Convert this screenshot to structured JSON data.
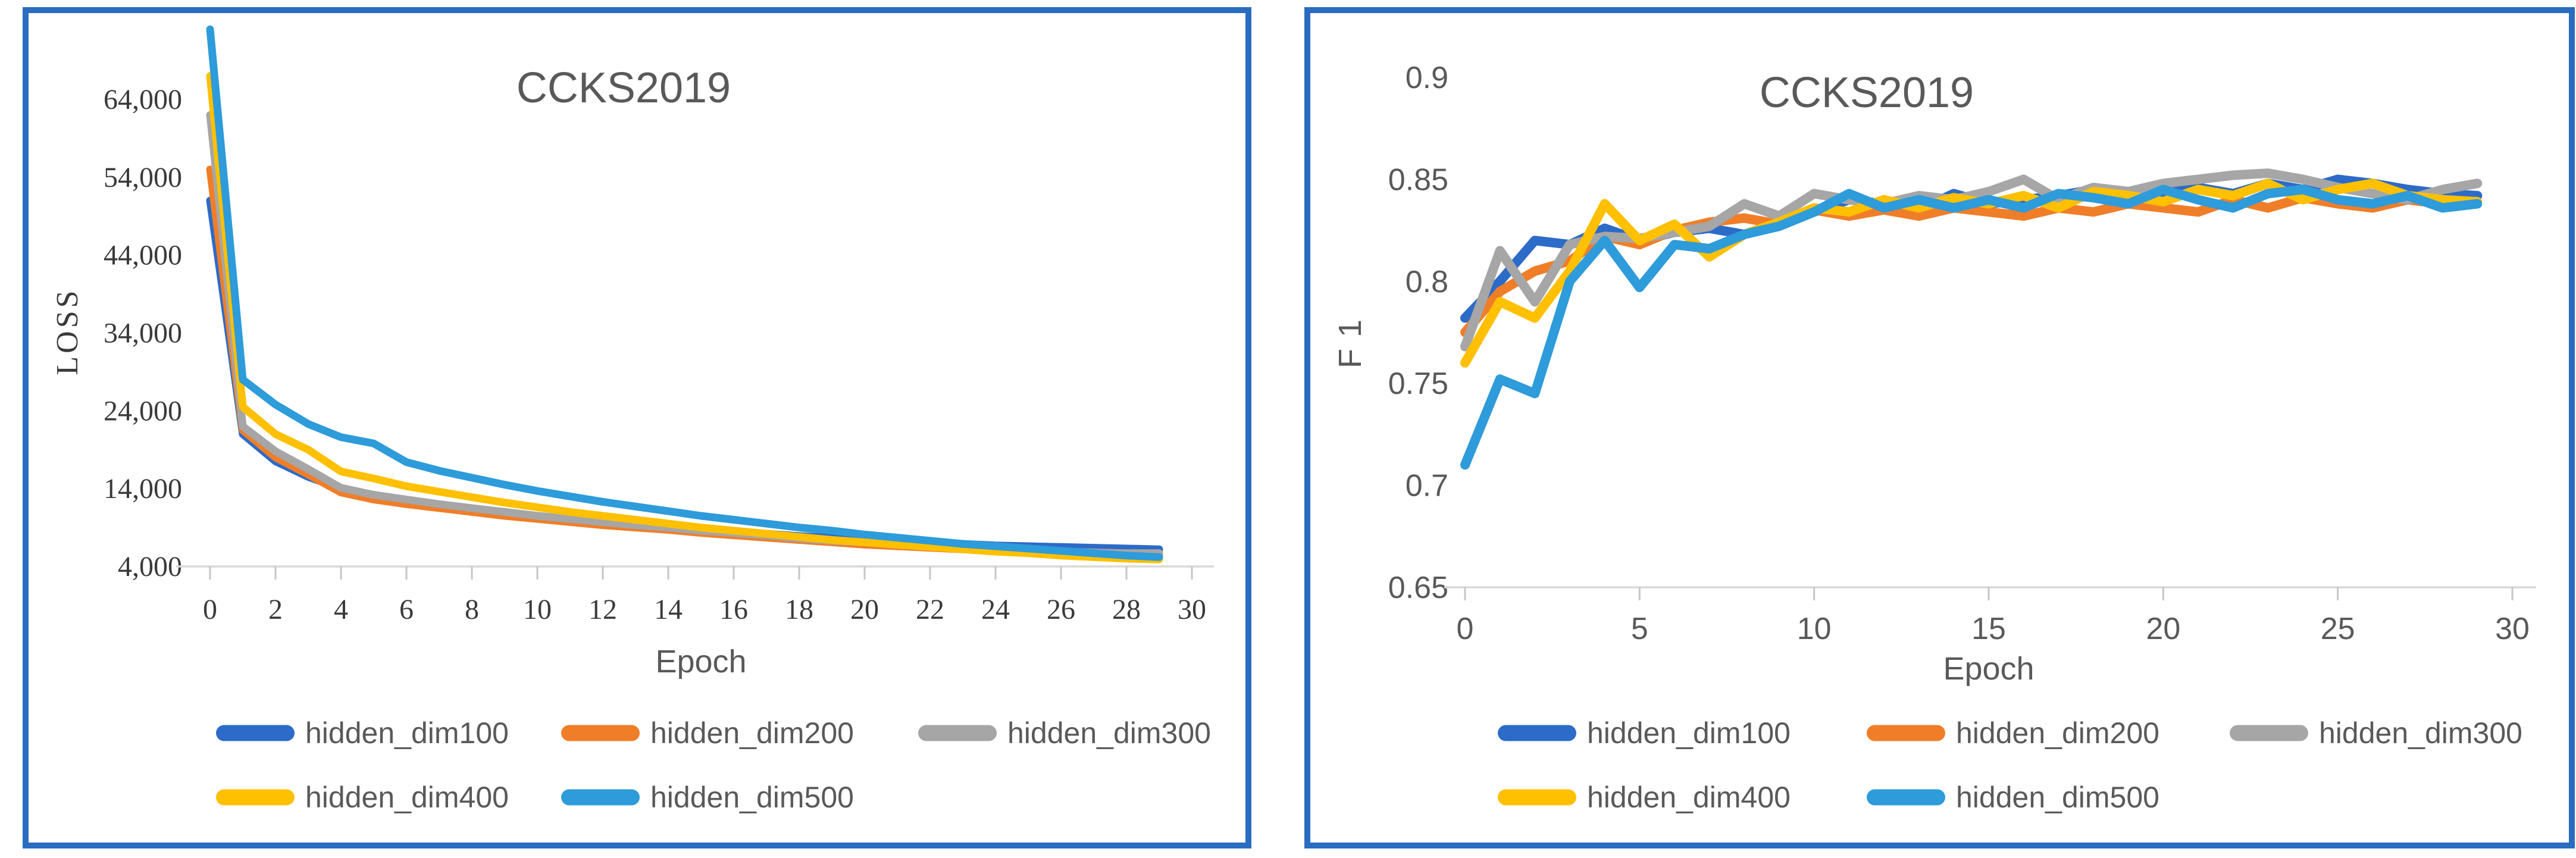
{
  "figure": {
    "panel_border_color": "#2A6CBF",
    "background_color": "#FFFFFF",
    "title_color": "#595959",
    "axis_line_color": "#D9D9D9",
    "tick_mark_color": "#C6C6C6",
    "serif_label_color": "#3A3A3A",
    "sans_label_color": "#595959"
  },
  "chart_data": [
    {
      "type": "line",
      "title": "CCKS2019",
      "xlabel": "Epoch",
      "ylabel": "LOSS",
      "xlim": [
        0,
        30
      ],
      "ylim": [
        4000,
        64000
      ],
      "grid": false,
      "legend_position": "bottom",
      "x_ticks": [
        {
          "value": 0,
          "label": "0"
        },
        {
          "value": 2,
          "label": "2"
        },
        {
          "value": 4,
          "label": "4"
        },
        {
          "value": 6,
          "label": "6"
        },
        {
          "value": 8,
          "label": "8"
        },
        {
          "value": 10,
          "label": "10"
        },
        {
          "value": 12,
          "label": "12"
        },
        {
          "value": 14,
          "label": "14"
        },
        {
          "value": 16,
          "label": "16"
        },
        {
          "value": 18,
          "label": "18"
        },
        {
          "value": 20,
          "label": "20"
        },
        {
          "value": 22,
          "label": "22"
        },
        {
          "value": 24,
          "label": "24"
        },
        {
          "value": 26,
          "label": "26"
        },
        {
          "value": 28,
          "label": "28"
        },
        {
          "value": 30,
          "label": "30"
        }
      ],
      "y_ticks": [
        {
          "value": 4000,
          "label": "4,000"
        },
        {
          "value": 14000,
          "label": "14,000"
        },
        {
          "value": 24000,
          "label": "24,000"
        },
        {
          "value": 34000,
          "label": "34,000"
        },
        {
          "value": 44000,
          "label": "44,000"
        },
        {
          "value": 54000,
          "label": "54,000"
        },
        {
          "value": 64000,
          "label": "64,000"
        }
      ],
      "x": [
        0,
        1,
        2,
        3,
        4,
        5,
        6,
        7,
        8,
        9,
        10,
        11,
        12,
        13,
        14,
        15,
        16,
        17,
        18,
        19,
        20,
        21,
        22,
        23,
        24,
        25,
        26,
        27,
        28,
        29
      ],
      "series": [
        {
          "name": "hidden_dim100",
          "color": "#2D6BC8",
          "values": [
            51000,
            21000,
            17500,
            15500,
            14000,
            13200,
            12500,
            11900,
            11400,
            11000,
            10500,
            10100,
            9700,
            9400,
            9100,
            8800,
            8500,
            8200,
            7900,
            7700,
            7400,
            7200,
            7000,
            6900,
            6700,
            6600,
            6500,
            6400,
            6300,
            6200
          ]
        },
        {
          "name": "hidden_dim200",
          "color": "#F07E28",
          "values": [
            55000,
            21500,
            18000,
            15800,
            13500,
            12600,
            12000,
            11500,
            11000,
            10500,
            10100,
            9700,
            9300,
            9000,
            8700,
            8300,
            8000,
            7700,
            7400,
            7100,
            6800,
            6600,
            6400,
            6200,
            6000,
            5900,
            5800,
            5700,
            5600,
            5600
          ]
        },
        {
          "name": "hidden_dim300",
          "color": "#A6A6A6",
          "values": [
            62000,
            22000,
            18800,
            16500,
            14100,
            13200,
            12600,
            12000,
            11500,
            11000,
            10500,
            10100,
            9700,
            9300,
            9000,
            8600,
            8300,
            8000,
            7600,
            7300,
            7100,
            6800,
            6600,
            6400,
            6200,
            6100,
            5900,
            5800,
            5700,
            5700
          ]
        },
        {
          "name": "hidden_dim400",
          "color": "#FFC000",
          "values": [
            67000,
            24500,
            21000,
            19000,
            16200,
            15300,
            14300,
            13600,
            12900,
            12200,
            11600,
            11000,
            10500,
            10000,
            9500,
            9000,
            8600,
            8200,
            7800,
            7400,
            7100,
            6800,
            6500,
            6200,
            5900,
            5700,
            5400,
            5200,
            5000,
            4900
          ]
        },
        {
          "name": "hidden_dim500",
          "color": "#2E9BDA",
          "values": [
            73000,
            28000,
            24800,
            22300,
            20600,
            19800,
            17400,
            16300,
            15400,
            14500,
            13700,
            13000,
            12300,
            11700,
            11100,
            10500,
            10000,
            9500,
            9000,
            8600,
            8100,
            7700,
            7300,
            6900,
            6600,
            6300,
            6000,
            5700,
            5400,
            5200
          ]
        }
      ]
    },
    {
      "type": "line",
      "title": "CCKS2019",
      "xlabel": "Epoch",
      "ylabel": "F 1",
      "xlim": [
        0,
        30
      ],
      "ylim": [
        0.65,
        0.9
      ],
      "grid": false,
      "legend_position": "bottom",
      "x_ticks": [
        {
          "value": 0,
          "label": "0"
        },
        {
          "value": 5,
          "label": "5"
        },
        {
          "value": 10,
          "label": "10"
        },
        {
          "value": 15,
          "label": "15"
        },
        {
          "value": 20,
          "label": "20"
        },
        {
          "value": 25,
          "label": "25"
        },
        {
          "value": 30,
          "label": "30"
        }
      ],
      "y_ticks": [
        {
          "value": 0.65,
          "label": "0.65"
        },
        {
          "value": 0.7,
          "label": "0.7"
        },
        {
          "value": 0.75,
          "label": "0.75"
        },
        {
          "value": 0.8,
          "label": "0.8"
        },
        {
          "value": 0.85,
          "label": "0.85"
        },
        {
          "value": 0.9,
          "label": "0.9"
        }
      ],
      "x": [
        0,
        1,
        2,
        3,
        4,
        5,
        6,
        7,
        8,
        9,
        10,
        11,
        12,
        13,
        14,
        15,
        16,
        17,
        18,
        19,
        20,
        21,
        22,
        23,
        24,
        25,
        26,
        27,
        28,
        29
      ],
      "series": [
        {
          "name": "hidden_dim100",
          "color": "#2D6BC8",
          "values": [
            0.782,
            0.8,
            0.82,
            0.818,
            0.826,
            0.82,
            0.824,
            0.826,
            0.823,
            0.829,
            0.834,
            0.84,
            0.838,
            0.835,
            0.843,
            0.838,
            0.84,
            0.842,
            0.845,
            0.84,
            0.843,
            0.846,
            0.843,
            0.848,
            0.845,
            0.85,
            0.848,
            0.845,
            0.843,
            0.842
          ]
        },
        {
          "name": "hidden_dim200",
          "color": "#F07E28",
          "values": [
            0.775,
            0.795,
            0.805,
            0.81,
            0.822,
            0.818,
            0.825,
            0.829,
            0.831,
            0.828,
            0.835,
            0.832,
            0.835,
            0.832,
            0.836,
            0.834,
            0.832,
            0.836,
            0.834,
            0.838,
            0.836,
            0.834,
            0.84,
            0.836,
            0.841,
            0.838,
            0.836,
            0.84,
            0.838,
            0.839
          ]
        },
        {
          "name": "hidden_dim300",
          "color": "#A6A6A6",
          "values": [
            0.768,
            0.815,
            0.79,
            0.818,
            0.822,
            0.821,
            0.824,
            0.827,
            0.838,
            0.832,
            0.843,
            0.84,
            0.838,
            0.842,
            0.84,
            0.844,
            0.85,
            0.84,
            0.846,
            0.844,
            0.848,
            0.85,
            0.852,
            0.853,
            0.85,
            0.846,
            0.843,
            0.84,
            0.845,
            0.848
          ]
        },
        {
          "name": "hidden_dim400",
          "color": "#FFC000",
          "values": [
            0.76,
            0.79,
            0.782,
            0.805,
            0.838,
            0.82,
            0.828,
            0.812,
            0.823,
            0.829,
            0.836,
            0.834,
            0.84,
            0.836,
            0.841,
            0.838,
            0.842,
            0.836,
            0.844,
            0.842,
            0.839,
            0.845,
            0.842,
            0.848,
            0.84,
            0.845,
            0.848,
            0.842,
            0.84,
            0.839
          ]
        },
        {
          "name": "hidden_dim500",
          "color": "#2E9BDA",
          "values": [
            0.71,
            0.752,
            0.745,
            0.8,
            0.82,
            0.797,
            0.818,
            0.816,
            0.823,
            0.827,
            0.834,
            0.843,
            0.836,
            0.84,
            0.836,
            0.84,
            0.836,
            0.843,
            0.841,
            0.838,
            0.845,
            0.84,
            0.836,
            0.843,
            0.845,
            0.84,
            0.838,
            0.842,
            0.836,
            0.838
          ]
        }
      ]
    }
  ]
}
